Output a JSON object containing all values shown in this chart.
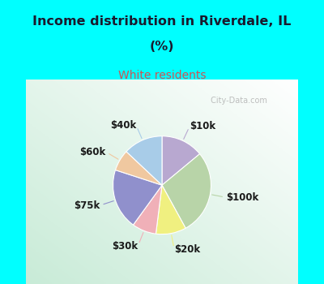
{
  "title_line1": "Income distribution in Riverdale, IL",
  "title_line2": "(%)",
  "subtitle": "White residents",
  "title_color": "#1a1a2e",
  "subtitle_color": "#cc5555",
  "bg_cyan": "#00ffff",
  "labels": [
    "$10k",
    "$100k",
    "$20k",
    "$30k",
    "$75k",
    "$60k",
    "$40k"
  ],
  "values": [
    14,
    28,
    10,
    8,
    20,
    7,
    13
  ],
  "colors": [
    "#b8a8d0",
    "#b8d4a8",
    "#f0f080",
    "#f0b0b8",
    "#9090cc",
    "#f0c8a0",
    "#a8cce8"
  ],
  "startangle": 90,
  "label_fontsize": 8.5,
  "watermark": " City-Data.com"
}
